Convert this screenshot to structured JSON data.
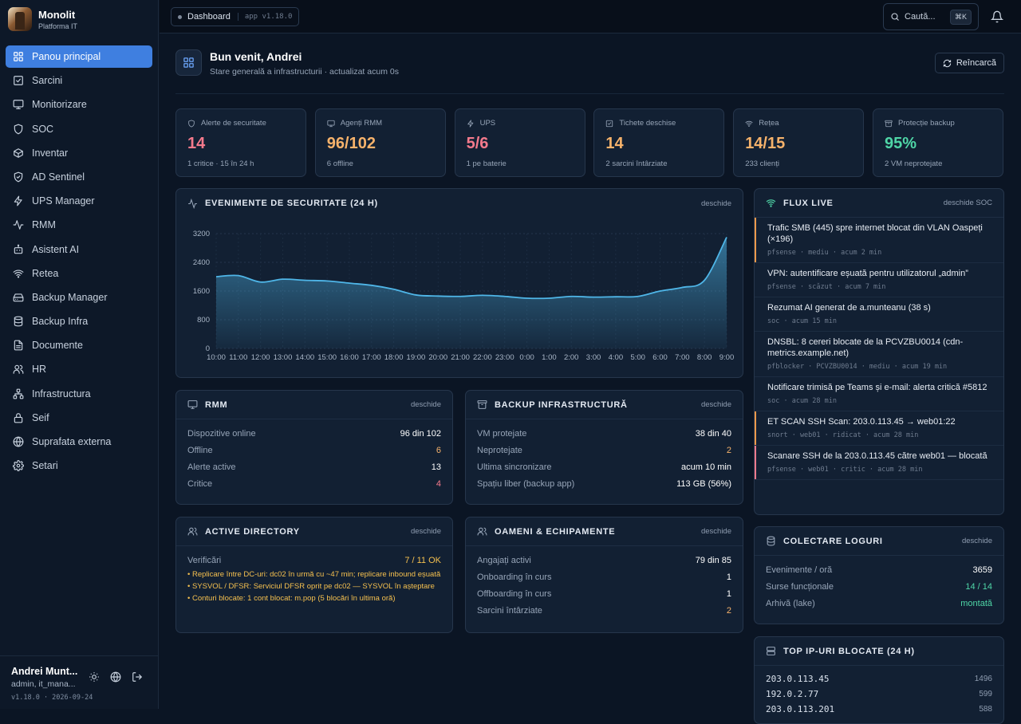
{
  "brand": {
    "name": "Monolit",
    "subtitle": "Platforma IT"
  },
  "nav": [
    {
      "label": "Panou principal",
      "icon": "grid-icon",
      "active": true
    },
    {
      "label": "Sarcini",
      "icon": "checkbox-icon"
    },
    {
      "label": "Monitorizare",
      "icon": "monitor-icon"
    },
    {
      "label": "SOC",
      "icon": "shield-icon"
    },
    {
      "label": "Inventar",
      "icon": "box-icon"
    },
    {
      "label": "AD Sentinel",
      "icon": "shield-check-icon"
    },
    {
      "label": "UPS Manager",
      "icon": "bolt-icon"
    },
    {
      "label": "RMM",
      "icon": "activity-icon"
    },
    {
      "label": "Asistent AI",
      "icon": "robot-icon"
    },
    {
      "label": "Retea",
      "icon": "wifi-icon"
    },
    {
      "label": "Backup Manager",
      "icon": "hard-drive-icon"
    },
    {
      "label": "Backup Infra",
      "icon": "database-icon"
    },
    {
      "label": "Documente",
      "icon": "document-icon"
    },
    {
      "label": "HR",
      "icon": "users-icon"
    },
    {
      "label": "Infrastructura",
      "icon": "network-icon"
    },
    {
      "label": "Seif",
      "icon": "lock-icon"
    },
    {
      "label": "Suprafata externa",
      "icon": "globe-icon"
    },
    {
      "label": "Setari",
      "icon": "gear-icon"
    }
  ],
  "user": {
    "name": "Andrei Munt...",
    "role": "admin, it_mana...",
    "version": "v1.18.0 · 2026-09-24"
  },
  "topbar": {
    "breadcrumb": "Dashboard",
    "app_version": "app v1.18.0",
    "search_label": "Caută...",
    "search_shortcut": "⌘K"
  },
  "welcome": {
    "title": "Bun venit, Andrei",
    "subtitle": "Stare generală a infrastructurii · actualizat acum 0s",
    "reload_label": "Reîncarcă"
  },
  "stats": [
    {
      "label": "Alerte de securitate",
      "value": "14",
      "sub": "1 critice · 15 în 24 h",
      "color": "#f47a8c",
      "icon": "shield-icon"
    },
    {
      "label": "Agenți RMM",
      "value": "96/102",
      "sub": "6 offline",
      "color": "#f6b26b",
      "icon": "monitor-icon"
    },
    {
      "label": "UPS",
      "value": "5/6",
      "sub": "1 pe baterie",
      "color": "#f47a8c",
      "icon": "bolt-icon"
    },
    {
      "label": "Tichete deschise",
      "value": "14",
      "sub": "2 sarcini întârziate",
      "color": "#f6b26b",
      "icon": "checkbox-icon"
    },
    {
      "label": "Rețea",
      "value": "14/15",
      "sub": "233 clienți",
      "color": "#f6b26b",
      "icon": "wifi-icon"
    },
    {
      "label": "Protecție backup",
      "value": "95%",
      "sub": "2 VM neprotejate",
      "color": "#4fd6a7",
      "icon": "archive-icon"
    }
  ],
  "security_events": {
    "title": "EVENIMENTE DE SECURITATE (24 H)",
    "link": "deschide",
    "y_ticks": [
      "3200",
      "2400",
      "1600",
      "800",
      "0"
    ]
  },
  "chart_data": {
    "type": "area",
    "categories": [
      "10:00",
      "11:00",
      "12:00",
      "13:00",
      "14:00",
      "15:00",
      "16:00",
      "17:00",
      "18:00",
      "19:00",
      "20:00",
      "21:00",
      "22:00",
      "23:00",
      "0:00",
      "1:00",
      "2:00",
      "3:00",
      "4:00",
      "5:00",
      "6:00",
      "7:00",
      "8:00",
      "9:00"
    ],
    "values": [
      2000,
      2030,
      1850,
      1930,
      1900,
      1880,
      1820,
      1760,
      1650,
      1490,
      1460,
      1450,
      1480,
      1450,
      1400,
      1400,
      1450,
      1430,
      1440,
      1450,
      1600,
      1700,
      1900,
      3100
    ],
    "ylim": [
      0,
      3200
    ],
    "title": "EVENIMENTE DE SECURITATE (24 H)",
    "color": "#4fb6e8",
    "grid": true
  },
  "flux": {
    "title": "FLUX LIVE",
    "link": "deschide SOC",
    "items": [
      {
        "text": "Trafic SMB (445) spre internet blocat din VLAN Oaspeți (×196)",
        "meta": "pfsense · mediu · acum 2 min",
        "accent": "#f2994a"
      },
      {
        "text": "VPN: autentificare eșuată pentru utilizatorul „admin”",
        "meta": "pfsense · scăzut · acum 7 min",
        "accent": ""
      },
      {
        "text": "Rezumat AI generat de a.munteanu (38 s)",
        "meta": "soc · acum 15 min",
        "accent": ""
      },
      {
        "text": "DNSBL: 8 cereri blocate de la PCVZBU0014 (cdn-metrics.example.net)",
        "meta": "pfblocker · PCVZBU0014 · mediu · acum 19 min",
        "accent": ""
      },
      {
        "text": "Notificare trimisă pe Teams și e-mail: alerta critică #5812",
        "meta": "soc · acum 28 min",
        "accent": ""
      },
      {
        "text": "ET SCAN SSH Scan: 203.0.113.45 → web01:22",
        "meta": "snort · web01 · ridicat · acum 28 min",
        "accent": "#f2994a"
      },
      {
        "text": "Scanare SSH de la 203.0.113.45 către web01 — blocată",
        "meta": "pfsense · web01 · critic · acum 28 min",
        "accent": "#f47a8c"
      }
    ]
  },
  "rmm": {
    "title": "RMM",
    "link": "deschide",
    "rows": [
      {
        "k": "Dispozitive online",
        "v": "96 din 102",
        "color": "#ffffff"
      },
      {
        "k": "Offline",
        "v": "6",
        "color": "#f6b26b"
      },
      {
        "k": "Alerte active",
        "v": "13",
        "color": "#ffffff"
      },
      {
        "k": "Critice",
        "v": "4",
        "color": "#f47a8c"
      }
    ]
  },
  "backup": {
    "title": "BACKUP INFRASTRUCTURĂ",
    "link": "deschide",
    "rows": [
      {
        "k": "VM protejate",
        "v": "38 din 40",
        "color": "#ffffff"
      },
      {
        "k": "Neprotejate",
        "v": "2",
        "color": "#f6b26b"
      },
      {
        "k": "Ultima sincronizare",
        "v": "acum 10 min",
        "color": "#ffffff"
      },
      {
        "k": "Spațiu liber (backup app)",
        "v": "113 GB (56%)",
        "color": "#ffffff"
      }
    ]
  },
  "ad": {
    "title": "ACTIVE DIRECTORY",
    "link": "deschide",
    "check_label": "Verificări",
    "check_value": "7 / 11 OK",
    "lines": [
      "• Replicare între DC-uri: dc02 în urmă cu ~47 min; replicare inbound eșuată",
      "• SYSVOL / DFSR: Serviciul DFSR oprit pe dc02 — SYSVOL în așteptare",
      "• Conturi blocate: 1 cont blocat: m.pop (5 blocări în ultima oră)"
    ]
  },
  "people": {
    "title": "OAMENI & ECHIPAMENTE",
    "link": "deschide",
    "rows": [
      {
        "k": "Angajați activi",
        "v": "79 din 85",
        "color": "#ffffff"
      },
      {
        "k": "Onboarding în curs",
        "v": "1",
        "color": "#ffffff"
      },
      {
        "k": "Offboarding în curs",
        "v": "1",
        "color": "#ffffff"
      },
      {
        "k": "Sarcini întârziate",
        "v": "2",
        "color": "#f6b26b"
      }
    ]
  },
  "logs": {
    "title": "COLECTARE LOGURI",
    "link": "deschide",
    "rows": [
      {
        "k": "Evenimente / oră",
        "v": "3659",
        "color": "#ffffff"
      },
      {
        "k": "Surse funcționale",
        "v": "14 / 14",
        "color": "#4fd6a7"
      },
      {
        "k": "Arhivă (lake)",
        "v": "montată",
        "color": "#4fd6a7"
      }
    ]
  },
  "top_ips": {
    "title": "TOP IP-URI BLOCATE (24 H)",
    "rows": [
      {
        "ip": "203.0.113.45",
        "count": "1496"
      },
      {
        "ip": "192.0.2.77",
        "count": "599"
      },
      {
        "ip": "203.0.113.201",
        "count": "588"
      }
    ]
  }
}
